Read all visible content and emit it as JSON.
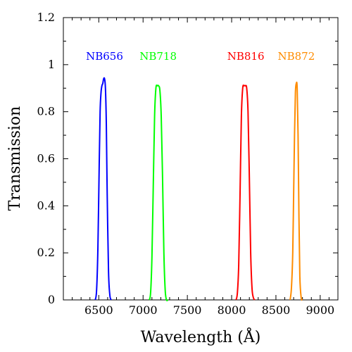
{
  "chart_data": {
    "type": "line",
    "title": "",
    "xlabel": "Wavelength (Å)",
    "ylabel": "Transmission",
    "xlim": [
      6100,
      9200
    ],
    "ylim": [
      0,
      1.2
    ],
    "xticks": [
      6500,
      7000,
      7500,
      8000,
      8500,
      9000
    ],
    "xtick_labels": [
      "6500",
      "7000",
      "7500",
      "8000",
      "8500",
      "9000"
    ],
    "yticks": [
      0,
      0.2,
      0.4,
      0.6,
      0.8,
      1.0,
      1.2
    ],
    "ytick_labels": [
      "0",
      "0.2",
      "0.4",
      "0.6",
      "0.8",
      "1",
      "1.2"
    ],
    "grid": false,
    "series": [
      {
        "name": "NB656",
        "color": "#0000ff",
        "label_x": 6565,
        "label_y": 1.02,
        "x": [
          6460,
          6475,
          6490,
          6505,
          6515,
          6525,
          6535,
          6545,
          6555,
          6565,
          6575,
          6585,
          6595,
          6610,
          6625,
          6640
        ],
        "y": [
          0.0,
          0.04,
          0.22,
          0.58,
          0.8,
          0.88,
          0.91,
          0.92,
          0.94,
          0.94,
          0.9,
          0.75,
          0.45,
          0.12,
          0.02,
          0.0
        ]
      },
      {
        "name": "NB718",
        "color": "#00ff00",
        "label_x": 7170,
        "label_y": 1.02,
        "x": [
          7070,
          7085,
          7100,
          7115,
          7130,
          7145,
          7160,
          7175,
          7190,
          7205,
          7220,
          7235,
          7250,
          7265,
          7280
        ],
        "y": [
          0.0,
          0.03,
          0.18,
          0.48,
          0.78,
          0.9,
          0.91,
          0.91,
          0.89,
          0.78,
          0.52,
          0.2,
          0.04,
          0.0,
          0.0
        ]
      },
      {
        "name": "NB816",
        "color": "#ff0000",
        "label_x": 8160,
        "label_y": 1.02,
        "x": [
          8050,
          8065,
          8080,
          8095,
          8110,
          8125,
          8140,
          8155,
          8170,
          8185,
          8200,
          8215,
          8230,
          8245,
          8260
        ],
        "y": [
          0.0,
          0.03,
          0.15,
          0.45,
          0.78,
          0.9,
          0.91,
          0.91,
          0.9,
          0.8,
          0.52,
          0.2,
          0.05,
          0.01,
          0.0
        ]
      },
      {
        "name": "NB872",
        "color": "#ff8c00",
        "label_x": 8730,
        "label_y": 1.02,
        "x": [
          8660,
          8675,
          8690,
          8700,
          8710,
          8720,
          8730,
          8740,
          8750,
          8760,
          8770,
          8785,
          8800
        ],
        "y": [
          0.0,
          0.05,
          0.2,
          0.45,
          0.7,
          0.88,
          0.92,
          0.9,
          0.7,
          0.35,
          0.1,
          0.01,
          0.0
        ]
      }
    ]
  }
}
